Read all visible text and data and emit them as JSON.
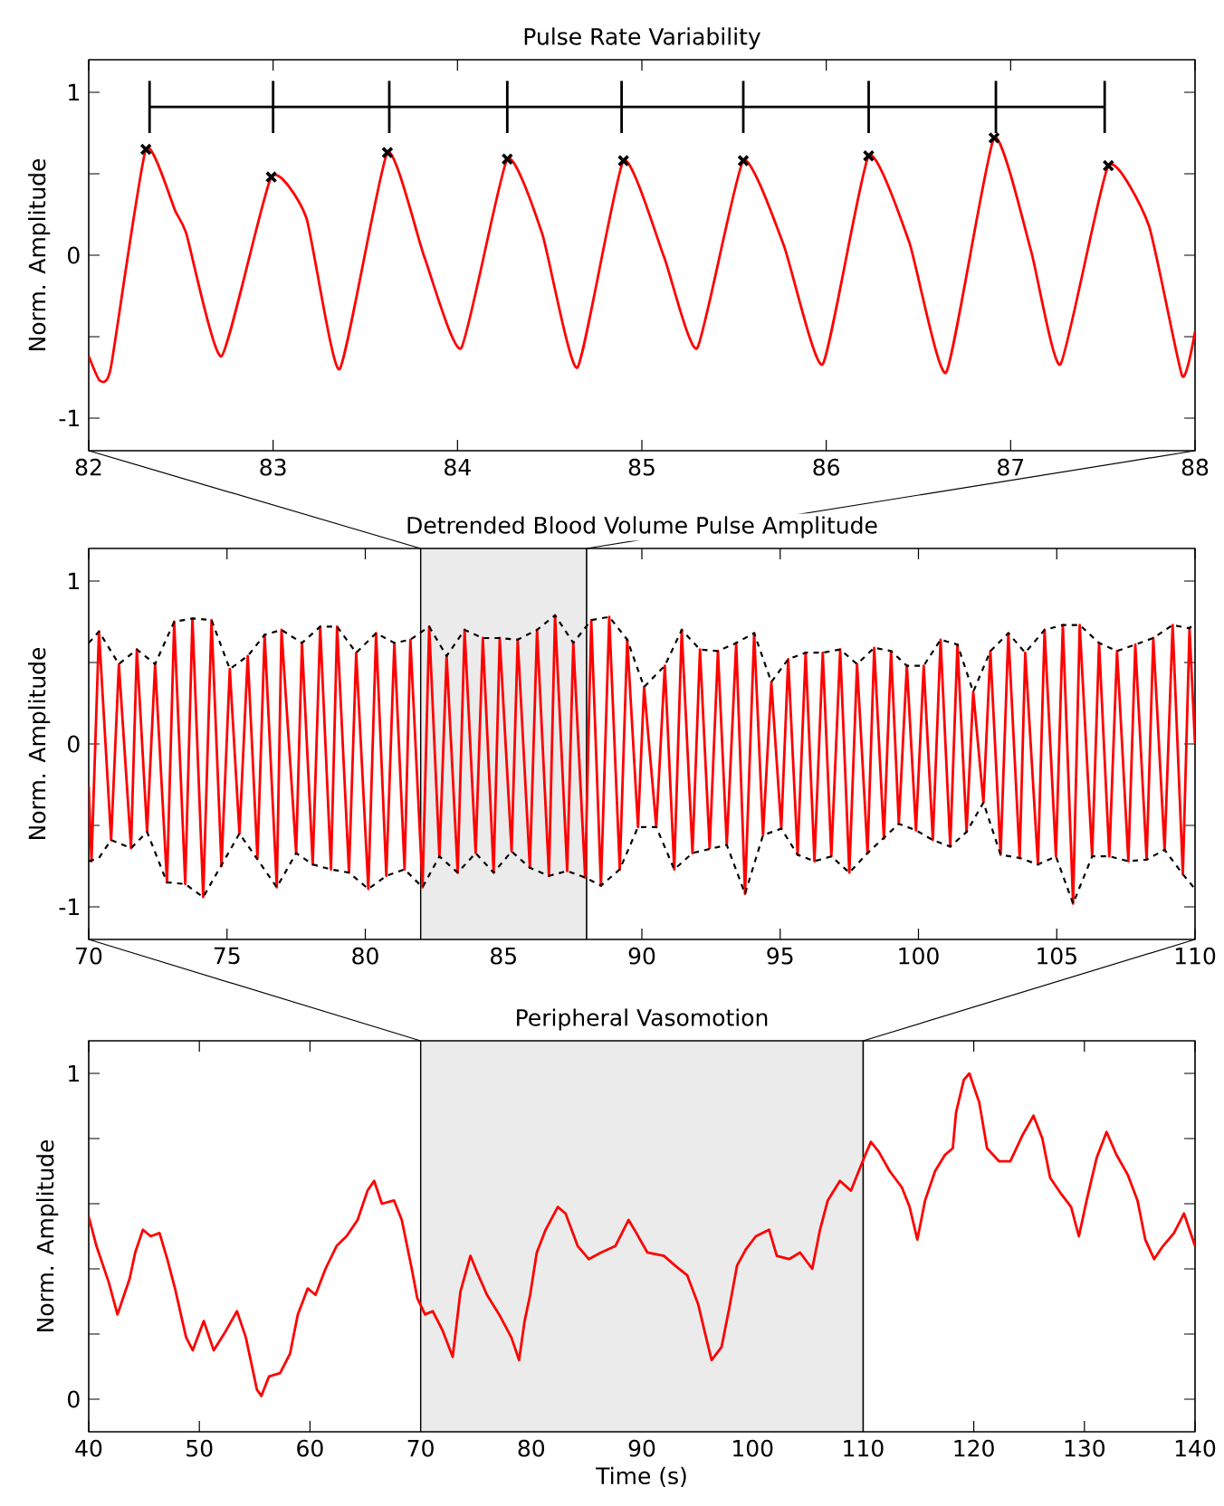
{
  "chart_data": [
    {
      "type": "line",
      "title": "Pulse Rate Variability",
      "ylabel": "Norm. Amplitude",
      "xlim": [
        82,
        88
      ],
      "ylim": [
        -1.2,
        1.2
      ],
      "xticks": [
        82,
        83,
        84,
        85,
        86,
        87,
        88
      ],
      "yticks": [
        -1,
        {
          "value": -0.5,
          "label": null
        },
        0,
        {
          "value": 0.5,
          "label": null
        },
        1
      ],
      "series": [
        {
          "color": "#ff0000",
          "line_style": "solid",
          "x": [
            82.0,
            82.06,
            82.12,
            82.31,
            82.47,
            82.53,
            82.72,
            82.99,
            83.18,
            83.36,
            83.62,
            83.82,
            84.02,
            84.27,
            84.46,
            84.65,
            84.9,
            85.12,
            85.3,
            85.55,
            85.77,
            85.98,
            86.23,
            86.45,
            86.65,
            86.91,
            87.11,
            87.27,
            87.53,
            87.75,
            87.93,
            88.0
          ],
          "values": [
            -0.62,
            -0.77,
            -0.69,
            0.65,
            0.27,
            0.13,
            -0.62,
            0.48,
            0.23,
            -0.7,
            0.63,
            -0.01,
            -0.57,
            0.59,
            0.13,
            -0.69,
            0.58,
            -0.01,
            -0.57,
            0.58,
            0.06,
            -0.67,
            0.61,
            0.08,
            -0.72,
            0.72,
            0.03,
            -0.67,
            0.55,
            0.18,
            -0.74,
            -0.47
          ]
        },
        {
          "type": "scatter",
          "color": "#000000",
          "marker": "cross",
          "x": [
            82.31,
            82.99,
            83.62,
            84.27,
            84.9,
            85.55,
            86.23,
            86.91,
            87.53
          ],
          "values": [
            0.65,
            0.48,
            0.63,
            0.59,
            0.58,
            0.58,
            0.61,
            0.72,
            0.55
          ]
        },
        {
          "color": "#000000",
          "line_style": "solid",
          "x": [
            82.33,
            83.0,
            83.63,
            84.27,
            84.89,
            85.55,
            86.23,
            86.92,
            87.51
          ],
          "values": [
            0.91,
            0.91,
            0.91,
            0.91,
            0.91,
            0.91,
            0.91,
            0.91,
            0.91
          ],
          "errors": [
            0.16,
            0.16,
            0.16,
            0.16,
            0.16,
            0.16,
            0.16,
            0.16,
            0.16
          ]
        }
      ]
    },
    {
      "type": "line",
      "title": "Detrended Blood Volume Pulse Amplitude",
      "ylabel": "Norm. Amplitude",
      "xlim": [
        70,
        110
      ],
      "ylim": [
        -1.2,
        1.2
      ],
      "xticks": [
        70,
        75,
        80,
        85,
        90,
        95,
        100,
        105,
        110
      ],
      "yticks": [
        -1,
        {
          "value": -0.5,
          "label": null
        },
        0,
        {
          "value": 0.5,
          "label": null
        },
        1
      ],
      "bands": [
        {
          "axis": "x",
          "from": 82,
          "to": 88,
          "color": "#ebebeb"
        }
      ],
      "series": [
        {
          "color": "#ff0000",
          "line_style": "solid",
          "x": [
            70.0,
            70.1,
            70.37,
            70.81,
            71.09,
            71.53,
            71.74,
            72.11,
            72.4,
            72.83,
            73.09,
            73.49,
            73.75,
            74.14,
            74.44,
            74.8,
            75.1,
            75.45,
            75.75,
            76.1,
            76.36,
            76.8,
            76.97,
            77.5,
            77.71,
            78.1,
            78.37,
            78.76,
            78.98,
            79.41,
            79.67,
            80.11,
            80.39,
            80.76,
            81.05,
            81.42,
            81.63,
            82.07,
            82.31,
            82.68,
            82.94,
            83.34,
            83.59,
            83.99,
            84.25,
            84.64,
            84.86,
            85.29,
            85.51,
            85.95,
            86.21,
            86.64,
            86.86,
            87.3,
            87.52,
            87.95,
            88.17,
            88.52,
            88.82,
            89.2,
            89.47,
            89.86,
            90.08,
            90.52,
            90.83,
            91.17,
            91.44,
            91.83,
            92.1,
            92.45,
            92.75,
            93.07,
            93.41,
            93.73,
            94.06,
            94.38,
            94.68,
            95.04,
            95.29,
            95.63,
            95.92,
            96.24,
            96.54,
            96.85,
            97.17,
            97.5,
            97.78,
            98.16,
            98.4,
            98.75,
            99.01,
            99.29,
            99.58,
            99.91,
            100.19,
            100.52,
            100.8,
            101.15,
            101.41,
            101.74,
            101.98,
            102.35,
            102.6,
            102.97,
            103.25,
            103.66,
            103.86,
            104.32,
            104.56,
            104.97,
            105.22,
            105.59,
            105.83,
            106.28,
            106.53,
            106.9,
            107.18,
            107.59,
            107.84,
            108.25,
            108.49,
            108.9,
            109.19,
            109.56,
            109.8,
            110.0
          ],
          "values": [
            -0.26,
            -0.72,
            0.69,
            -0.59,
            0.49,
            -0.64,
            0.58,
            -0.54,
            0.49,
            -0.85,
            0.75,
            -0.86,
            0.77,
            -0.94,
            0.76,
            -0.75,
            0.46,
            -0.55,
            0.54,
            -0.7,
            0.67,
            -0.88,
            0.7,
            -0.67,
            0.62,
            -0.74,
            0.72,
            -0.77,
            0.72,
            -0.79,
            0.56,
            -0.89,
            0.68,
            -0.81,
            0.62,
            -0.77,
            0.64,
            -0.88,
            0.72,
            -0.69,
            0.54,
            -0.79,
            0.7,
            -0.67,
            0.65,
            -0.79,
            0.65,
            -0.66,
            0.64,
            -0.76,
            0.7,
            -0.81,
            0.79,
            -0.78,
            0.62,
            -0.82,
            0.76,
            -0.87,
            0.78,
            -0.77,
            0.64,
            -0.51,
            0.35,
            -0.51,
            0.48,
            -0.77,
            0.7,
            -0.67,
            0.58,
            -0.64,
            0.57,
            -0.62,
            0.62,
            -0.92,
            0.68,
            -0.56,
            0.38,
            -0.52,
            0.52,
            -0.68,
            0.56,
            -0.72,
            0.56,
            -0.69,
            0.58,
            -0.79,
            0.49,
            -0.67,
            0.59,
            -0.58,
            0.57,
            -0.49,
            0.48,
            -0.53,
            0.48,
            -0.59,
            0.64,
            -0.63,
            0.61,
            -0.54,
            0.32,
            -0.36,
            0.57,
            -0.68,
            0.68,
            -0.7,
            0.56,
            -0.74,
            0.7,
            -0.69,
            0.73,
            -0.98,
            0.73,
            -0.69,
            0.62,
            -0.69,
            0.57,
            -0.72,
            0.61,
            -0.71,
            0.65,
            -0.65,
            0.73,
            -0.8,
            0.71,
            0.0
          ]
        },
        {
          "color": "#000000",
          "line_style": "dashed",
          "x": [
            70.0,
            70.37,
            71.09,
            71.74,
            72.4,
            73.09,
            73.75,
            74.44,
            75.1,
            75.75,
            76.36,
            76.97,
            77.71,
            78.37,
            78.98,
            79.67,
            80.39,
            81.05,
            81.63,
            82.31,
            82.94,
            83.59,
            84.25,
            84.86,
            85.51,
            86.21,
            86.86,
            87.52,
            88.17,
            88.82,
            89.47,
            90.08,
            90.83,
            91.44,
            92.1,
            92.75,
            93.41,
            94.06,
            94.68,
            95.29,
            95.92,
            96.54,
            97.17,
            97.78,
            98.4,
            99.01,
            99.58,
            100.19,
            100.8,
            101.41,
            101.98,
            102.6,
            103.25,
            103.86,
            104.56,
            105.22,
            105.83,
            106.53,
            107.18,
            107.84,
            108.49,
            109.19,
            109.8,
            110.0
          ],
          "values": [
            0.62,
            0.69,
            0.49,
            0.58,
            0.49,
            0.75,
            0.77,
            0.76,
            0.46,
            0.54,
            0.67,
            0.7,
            0.62,
            0.72,
            0.72,
            0.56,
            0.68,
            0.62,
            0.64,
            0.72,
            0.54,
            0.7,
            0.65,
            0.65,
            0.64,
            0.7,
            0.79,
            0.62,
            0.76,
            0.78,
            0.64,
            0.35,
            0.48,
            0.7,
            0.58,
            0.57,
            0.62,
            0.68,
            0.38,
            0.52,
            0.56,
            0.56,
            0.58,
            0.49,
            0.59,
            0.57,
            0.48,
            0.48,
            0.64,
            0.61,
            0.32,
            0.57,
            0.68,
            0.56,
            0.7,
            0.73,
            0.73,
            0.62,
            0.57,
            0.61,
            0.65,
            0.73,
            0.71,
            0.75
          ]
        },
        {
          "color": "#000000",
          "line_style": "dashed",
          "x": [
            70.0,
            70.37,
            70.81,
            71.53,
            72.11,
            72.83,
            73.49,
            74.14,
            75.45,
            76.8,
            77.5,
            78.1,
            78.76,
            79.41,
            80.11,
            80.76,
            81.42,
            82.07,
            82.68,
            83.34,
            83.99,
            84.64,
            85.29,
            85.95,
            86.64,
            87.3,
            87.95,
            88.52,
            89.2,
            89.86,
            90.52,
            91.17,
            91.83,
            93.07,
            93.73,
            94.38,
            95.04,
            95.63,
            96.24,
            96.85,
            97.5,
            98.16,
            99.29,
            99.91,
            100.52,
            101.15,
            101.74,
            102.35,
            102.97,
            103.66,
            104.32,
            104.97,
            105.59,
            106.28,
            106.9,
            107.59,
            108.25,
            108.9,
            109.56,
            110.0
          ],
          "values": [
            -0.72,
            -0.7,
            -0.59,
            -0.64,
            -0.54,
            -0.85,
            -0.86,
            -0.94,
            -0.55,
            -0.88,
            -0.67,
            -0.74,
            -0.77,
            -0.79,
            -0.89,
            -0.81,
            -0.77,
            -0.88,
            -0.69,
            -0.79,
            -0.67,
            -0.79,
            -0.66,
            -0.76,
            -0.81,
            -0.78,
            -0.82,
            -0.87,
            -0.77,
            -0.51,
            -0.51,
            -0.77,
            -0.67,
            -0.62,
            -0.92,
            -0.56,
            -0.52,
            -0.68,
            -0.72,
            -0.69,
            -0.79,
            -0.67,
            -0.49,
            -0.53,
            -0.59,
            -0.63,
            -0.54,
            -0.36,
            -0.68,
            -0.7,
            -0.74,
            -0.69,
            -0.98,
            -0.69,
            -0.69,
            -0.72,
            -0.71,
            -0.65,
            -0.8,
            -0.89
          ]
        }
      ]
    },
    {
      "type": "line",
      "title": "Peripheral Vasomotion",
      "xlabel": "Time (s)",
      "ylabel": "Norm. Amplitude",
      "xlim": [
        40,
        140
      ],
      "ylim": [
        -0.1,
        1.1
      ],
      "xticks": [
        40,
        50,
        60,
        70,
        80,
        90,
        100,
        110,
        120,
        130,
        140
      ],
      "yticks": [
        0,
        {
          "value": 0.2,
          "label": null
        },
        {
          "value": 0.4,
          "label": null
        },
        {
          "value": 0.6,
          "label": null
        },
        {
          "value": 0.8,
          "label": null
        },
        1
      ],
      "bands": [
        {
          "axis": "x",
          "from": 70,
          "to": 110,
          "color": "#ebebeb"
        }
      ],
      "series": [
        {
          "color": "#ff0000",
          "line_style": "solid",
          "x": [
            40,
            40.7,
            41.8,
            42.6,
            43.2,
            43.7,
            44.2,
            44.9,
            45.6,
            46.4,
            47.1,
            47.8,
            48.8,
            49.4,
            50.4,
            51.3,
            52.4,
            53.4,
            54.2,
            55.2,
            55.6,
            56.3,
            57.3,
            58.2,
            58.9,
            59.8,
            60.5,
            61.4,
            62.4,
            63.3,
            64.3,
            65.2,
            65.8,
            66.5,
            67.6,
            68.3,
            69.2,
            69.7,
            70.4,
            71.1,
            72.0,
            72.9,
            73.6,
            74.5,
            75.1,
            76.0,
            77.1,
            78.2,
            78.9,
            79.4,
            79.9,
            80.5,
            81.3,
            82.4,
            83.1,
            84.2,
            85.2,
            86.3,
            87.6,
            88.8,
            89.5,
            90.5,
            92.0,
            93.0,
            94.1,
            95.1,
            95.8,
            96.3,
            97.2,
            97.9,
            98.6,
            99.4,
            100.3,
            101.5,
            102.2,
            103.3,
            104.3,
            105.4,
            106.1,
            106.8,
            107.9,
            108.9,
            109.6,
            110.2,
            110.7,
            111.4,
            112.4,
            113.5,
            114.2,
            114.9,
            115.6,
            116.5,
            117.4,
            118.1,
            118.4,
            119.1,
            119.6,
            120.5,
            121.2,
            122.3,
            123.3,
            124.4,
            125.4,
            126.2,
            126.9,
            127.9,
            128.8,
            129.5,
            130.2,
            131.1,
            132.0,
            132.9,
            133.9,
            134.8,
            135.5,
            136.3,
            137.1,
            138.1,
            139.0,
            140
          ],
          "values": [
            0.56,
            0.47,
            0.36,
            0.26,
            0.32,
            0.37,
            0.45,
            0.52,
            0.5,
            0.51,
            0.43,
            0.34,
            0.19,
            0.15,
            0.24,
            0.15,
            0.21,
            0.27,
            0.19,
            0.03,
            0.01,
            0.07,
            0.08,
            0.14,
            0.26,
            0.34,
            0.32,
            0.4,
            0.47,
            0.5,
            0.55,
            0.64,
            0.67,
            0.6,
            0.61,
            0.55,
            0.4,
            0.31,
            0.26,
            0.27,
            0.21,
            0.13,
            0.33,
            0.44,
            0.39,
            0.32,
            0.26,
            0.19,
            0.12,
            0.24,
            0.32,
            0.45,
            0.52,
            0.59,
            0.57,
            0.47,
            0.43,
            0.45,
            0.47,
            0.55,
            0.51,
            0.45,
            0.44,
            0.41,
            0.38,
            0.29,
            0.19,
            0.12,
            0.16,
            0.28,
            0.41,
            0.46,
            0.5,
            0.52,
            0.44,
            0.43,
            0.45,
            0.4,
            0.52,
            0.61,
            0.67,
            0.64,
            0.7,
            0.75,
            0.79,
            0.76,
            0.7,
            0.65,
            0.59,
            0.49,
            0.61,
            0.7,
            0.75,
            0.77,
            0.88,
            0.98,
            1.0,
            0.91,
            0.77,
            0.73,
            0.73,
            0.81,
            0.87,
            0.8,
            0.68,
            0.63,
            0.59,
            0.5,
            0.61,
            0.74,
            0.82,
            0.75,
            0.69,
            0.61,
            0.49,
            0.43,
            0.47,
            0.51,
            0.57,
            0.47
          ]
        }
      ]
    }
  ]
}
